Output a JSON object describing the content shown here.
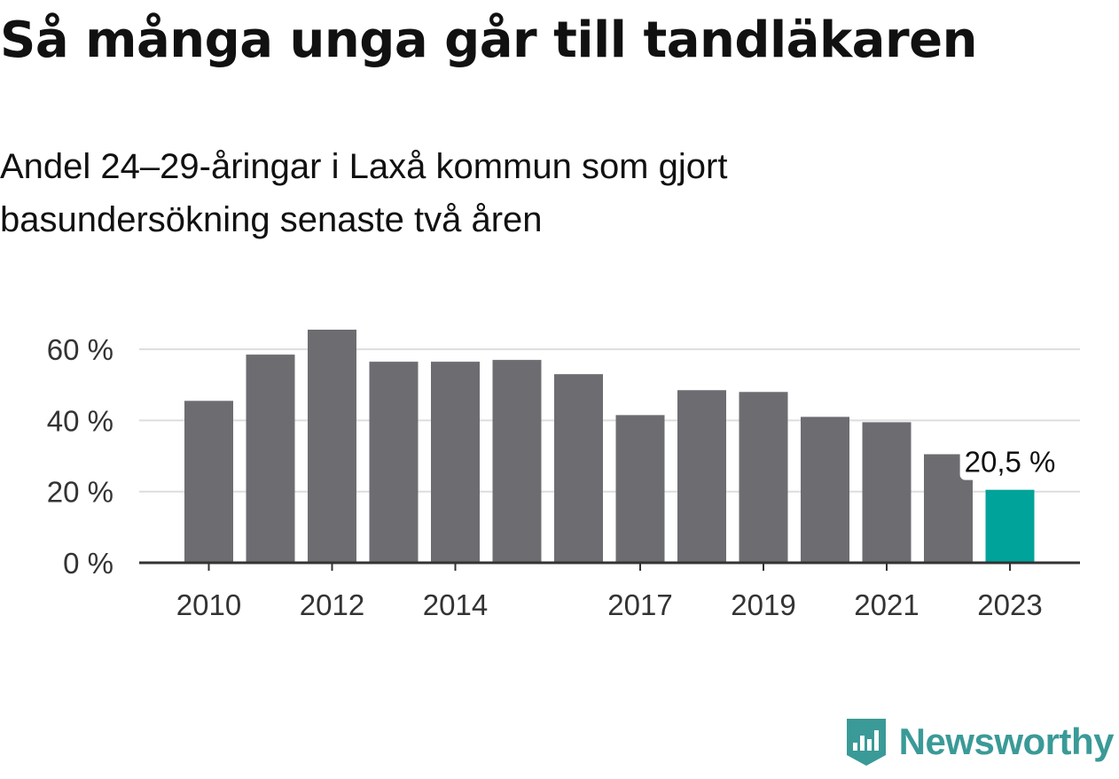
{
  "title": "Så många unga går till tandläkaren",
  "subtitle": "Andel 24–29-åringar i Laxå kommun som gjort basundersökning senaste två åren",
  "brand": {
    "name": "Newsworthy",
    "color": "#3a9a97"
  },
  "chart_data": {
    "type": "bar",
    "categories": [
      "2010",
      "2011",
      "2012",
      "2013",
      "2014",
      "2015",
      "2016",
      "2017",
      "2018",
      "2019",
      "2020",
      "2021",
      "2022",
      "2023"
    ],
    "values": [
      45.5,
      58.5,
      65.5,
      56.5,
      56.5,
      57.0,
      53.0,
      41.5,
      48.5,
      48.0,
      41.0,
      39.5,
      30.5,
      20.5
    ],
    "x_tick_labels": [
      "2010",
      "",
      "2012",
      "",
      "2014",
      "",
      "",
      "2017",
      "",
      "2019",
      "",
      "2021",
      "",
      "2023"
    ],
    "ylim": [
      0,
      65.5
    ],
    "y_ticks": [
      0,
      20,
      40,
      60
    ],
    "y_tick_labels": [
      "0 %",
      "20 %",
      "40 %",
      "60 %"
    ],
    "bar_color": "#6d6c71",
    "highlight_color": "#00a39a",
    "highlight_index": 13,
    "annotation": {
      "category": "2023",
      "text": "20,5 %"
    },
    "grid": true,
    "title": "Så många unga går till tandläkaren",
    "xlabel": "",
    "ylabel": ""
  }
}
